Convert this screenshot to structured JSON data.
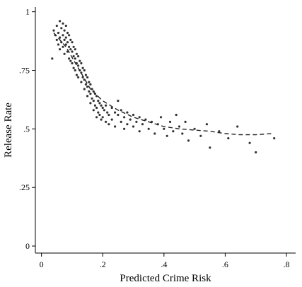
{
  "chart_data": {
    "type": "scatter",
    "title": "",
    "xlabel": "Predicted Crime Risk",
    "ylabel": "Release Rate",
    "xlim": [
      -0.02,
      0.83
    ],
    "ylim": [
      -0.03,
      1.02
    ],
    "x_ticks": [
      {
        "value": 0,
        "label": "0"
      },
      {
        "value": 0.2,
        "label": ".2"
      },
      {
        "value": 0.4,
        "label": ".4"
      },
      {
        "value": 0.6,
        "label": ".6"
      },
      {
        "value": 0.8,
        "label": ".8"
      }
    ],
    "y_ticks": [
      {
        "value": 0,
        "label": "0"
      },
      {
        "value": 0.25,
        "label": ".25"
      },
      {
        "value": 0.5,
        "label": ".5"
      },
      {
        "value": 0.75,
        "label": ".75"
      },
      {
        "value": 1,
        "label": "1"
      }
    ],
    "grid": false,
    "legend": "none",
    "marker_color": "#333333",
    "points": [
      {
        "x": 0.035,
        "y": 0.8
      },
      {
        "x": 0.04,
        "y": 0.92
      },
      {
        "x": 0.045,
        "y": 0.9
      },
      {
        "x": 0.05,
        "y": 0.88
      },
      {
        "x": 0.05,
        "y": 0.94
      },
      {
        "x": 0.055,
        "y": 0.86
      },
      {
        "x": 0.055,
        "y": 0.91
      },
      {
        "x": 0.06,
        "y": 0.96
      },
      {
        "x": 0.06,
        "y": 0.89
      },
      {
        "x": 0.06,
        "y": 0.84
      },
      {
        "x": 0.065,
        "y": 0.93
      },
      {
        "x": 0.065,
        "y": 0.87
      },
      {
        "x": 0.07,
        "y": 0.95
      },
      {
        "x": 0.07,
        "y": 0.9
      },
      {
        "x": 0.07,
        "y": 0.85
      },
      {
        "x": 0.075,
        "y": 0.92
      },
      {
        "x": 0.075,
        "y": 0.88
      },
      {
        "x": 0.075,
        "y": 0.82
      },
      {
        "x": 0.08,
        "y": 0.94
      },
      {
        "x": 0.08,
        "y": 0.89
      },
      {
        "x": 0.08,
        "y": 0.86
      },
      {
        "x": 0.085,
        "y": 0.91
      },
      {
        "x": 0.085,
        "y": 0.87
      },
      {
        "x": 0.085,
        "y": 0.83
      },
      {
        "x": 0.09,
        "y": 0.9
      },
      {
        "x": 0.09,
        "y": 0.85
      },
      {
        "x": 0.09,
        "y": 0.8
      },
      {
        "x": 0.095,
        "y": 0.88
      },
      {
        "x": 0.095,
        "y": 0.84
      },
      {
        "x": 0.095,
        "y": 0.79
      },
      {
        "x": 0.1,
        "y": 0.87
      },
      {
        "x": 0.1,
        "y": 0.83
      },
      {
        "x": 0.1,
        "y": 0.78
      },
      {
        "x": 0.105,
        "y": 0.85
      },
      {
        "x": 0.105,
        "y": 0.81
      },
      {
        "x": 0.105,
        "y": 0.76
      },
      {
        "x": 0.11,
        "y": 0.84
      },
      {
        "x": 0.11,
        "y": 0.8
      },
      {
        "x": 0.11,
        "y": 0.75
      },
      {
        "x": 0.115,
        "y": 0.82
      },
      {
        "x": 0.115,
        "y": 0.78
      },
      {
        "x": 0.115,
        "y": 0.73
      },
      {
        "x": 0.12,
        "y": 0.81
      },
      {
        "x": 0.12,
        "y": 0.77
      },
      {
        "x": 0.12,
        "y": 0.72
      },
      {
        "x": 0.125,
        "y": 0.79
      },
      {
        "x": 0.125,
        "y": 0.75
      },
      {
        "x": 0.13,
        "y": 0.78
      },
      {
        "x": 0.13,
        "y": 0.74
      },
      {
        "x": 0.13,
        "y": 0.7
      },
      {
        "x": 0.135,
        "y": 0.76
      },
      {
        "x": 0.135,
        "y": 0.72
      },
      {
        "x": 0.14,
        "y": 0.75
      },
      {
        "x": 0.14,
        "y": 0.71
      },
      {
        "x": 0.14,
        "y": 0.67
      },
      {
        "x": 0.145,
        "y": 0.73
      },
      {
        "x": 0.145,
        "y": 0.69
      },
      {
        "x": 0.15,
        "y": 0.72
      },
      {
        "x": 0.15,
        "y": 0.68
      },
      {
        "x": 0.15,
        "y": 0.64
      },
      {
        "x": 0.155,
        "y": 0.7
      },
      {
        "x": 0.155,
        "y": 0.66
      },
      {
        "x": 0.16,
        "y": 0.69
      },
      {
        "x": 0.16,
        "y": 0.65
      },
      {
        "x": 0.16,
        "y": 0.61
      },
      {
        "x": 0.165,
        "y": 0.67
      },
      {
        "x": 0.165,
        "y": 0.63
      },
      {
        "x": 0.17,
        "y": 0.66
      },
      {
        "x": 0.17,
        "y": 0.62
      },
      {
        "x": 0.17,
        "y": 0.58
      },
      {
        "x": 0.175,
        "y": 0.65
      },
      {
        "x": 0.175,
        "y": 0.6
      },
      {
        "x": 0.18,
        "y": 0.64
      },
      {
        "x": 0.18,
        "y": 0.59
      },
      {
        "x": 0.18,
        "y": 0.55
      },
      {
        "x": 0.185,
        "y": 0.62
      },
      {
        "x": 0.185,
        "y": 0.57
      },
      {
        "x": 0.19,
        "y": 0.61
      },
      {
        "x": 0.19,
        "y": 0.56
      },
      {
        "x": 0.195,
        "y": 0.6
      },
      {
        "x": 0.195,
        "y": 0.54
      },
      {
        "x": 0.2,
        "y": 0.59
      },
      {
        "x": 0.2,
        "y": 0.55
      },
      {
        "x": 0.205,
        "y": 0.58
      },
      {
        "x": 0.21,
        "y": 0.6
      },
      {
        "x": 0.21,
        "y": 0.53
      },
      {
        "x": 0.215,
        "y": 0.57
      },
      {
        "x": 0.22,
        "y": 0.56
      },
      {
        "x": 0.22,
        "y": 0.52
      },
      {
        "x": 0.23,
        "y": 0.59
      },
      {
        "x": 0.23,
        "y": 0.54
      },
      {
        "x": 0.24,
        "y": 0.57
      },
      {
        "x": 0.24,
        "y": 0.51
      },
      {
        "x": 0.25,
        "y": 0.56
      },
      {
        "x": 0.25,
        "y": 0.62
      },
      {
        "x": 0.26,
        "y": 0.53
      },
      {
        "x": 0.26,
        "y": 0.58
      },
      {
        "x": 0.27,
        "y": 0.55
      },
      {
        "x": 0.27,
        "y": 0.5
      },
      {
        "x": 0.28,
        "y": 0.57
      },
      {
        "x": 0.28,
        "y": 0.52
      },
      {
        "x": 0.29,
        "y": 0.54
      },
      {
        "x": 0.3,
        "y": 0.56
      },
      {
        "x": 0.3,
        "y": 0.51
      },
      {
        "x": 0.31,
        "y": 0.53
      },
      {
        "x": 0.32,
        "y": 0.55
      },
      {
        "x": 0.32,
        "y": 0.49
      },
      {
        "x": 0.33,
        "y": 0.52
      },
      {
        "x": 0.34,
        "y": 0.54
      },
      {
        "x": 0.35,
        "y": 0.5
      },
      {
        "x": 0.36,
        "y": 0.53
      },
      {
        "x": 0.37,
        "y": 0.48
      },
      {
        "x": 0.38,
        "y": 0.52
      },
      {
        "x": 0.39,
        "y": 0.55
      },
      {
        "x": 0.4,
        "y": 0.5
      },
      {
        "x": 0.41,
        "y": 0.47
      },
      {
        "x": 0.42,
        "y": 0.53
      },
      {
        "x": 0.43,
        "y": 0.49
      },
      {
        "x": 0.44,
        "y": 0.56
      },
      {
        "x": 0.45,
        "y": 0.51
      },
      {
        "x": 0.46,
        "y": 0.48
      },
      {
        "x": 0.47,
        "y": 0.53
      },
      {
        "x": 0.48,
        "y": 0.45
      },
      {
        "x": 0.5,
        "y": 0.5
      },
      {
        "x": 0.52,
        "y": 0.47
      },
      {
        "x": 0.54,
        "y": 0.52
      },
      {
        "x": 0.55,
        "y": 0.42
      },
      {
        "x": 0.58,
        "y": 0.49
      },
      {
        "x": 0.61,
        "y": 0.46
      },
      {
        "x": 0.64,
        "y": 0.51
      },
      {
        "x": 0.68,
        "y": 0.44
      },
      {
        "x": 0.7,
        "y": 0.4
      },
      {
        "x": 0.76,
        "y": 0.46
      }
    ],
    "trend_line": {
      "style": "dashed",
      "x": [
        0.04,
        0.08,
        0.12,
        0.16,
        0.2,
        0.25,
        0.3,
        0.35,
        0.4,
        0.45,
        0.5,
        0.55,
        0.6,
        0.65,
        0.7,
        0.75
      ],
      "y": [
        0.91,
        0.85,
        0.76,
        0.67,
        0.62,
        0.58,
        0.55,
        0.53,
        0.51,
        0.5,
        0.495,
        0.49,
        0.48,
        0.475,
        0.475,
        0.48
      ]
    }
  }
}
